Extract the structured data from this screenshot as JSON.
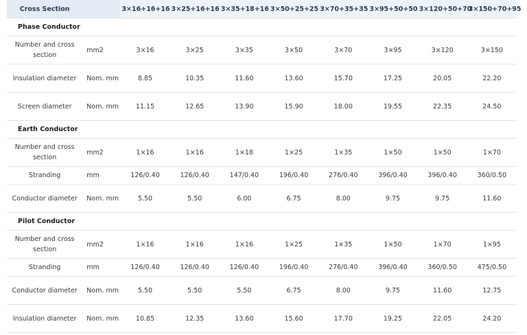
{
  "header": {
    "title": "Cross Section",
    "columns": [
      "3×16+16+16",
      "3×25+16+16",
      "3×35+18+16",
      "3×50+25+25",
      "3×70+35+35",
      "3×95+50+50",
      "3×120+50+70",
      "3×150+70+95"
    ]
  },
  "sections": [
    {
      "title": "Phase Conductor",
      "rows": [
        {
          "label": "Number and cross section",
          "unit": "mm2",
          "values": [
            "3×16",
            "3×25",
            "3×35",
            "3×50",
            "3×70",
            "3×95",
            "3×120",
            "3×150"
          ]
        },
        {
          "label": "Insulation diameter",
          "unit": "Nom. mm",
          "values": [
            "8.85",
            "10.35",
            "11.60",
            "13.60",
            "15.70",
            "17.25",
            "20.05",
            "22.20"
          ]
        },
        {
          "label": "Screen diameter",
          "unit": "Nom. mm",
          "values": [
            "11.15",
            "12.65",
            "13.90",
            "15.90",
            "18.00",
            "19.55",
            "22.35",
            "24.50"
          ]
        }
      ]
    },
    {
      "title": "Earth Conductor",
      "rows": [
        {
          "label": "Number and cross section",
          "unit": "mm2",
          "values": [
            "1×16",
            "1×16",
            "1×18",
            "1×25",
            "1×35",
            "1×50",
            "1×50",
            "1×70"
          ]
        },
        {
          "label": "Stranding",
          "unit": "mm",
          "values": [
            "126/0.40",
            "126/0.40",
            "147/0.40",
            "196/0.40",
            "276/0.40",
            "396/0.40",
            "396/0.40",
            "360/0.50"
          ]
        },
        {
          "label": "Conductor diameter",
          "unit": "Nom. mm",
          "values": [
            "5.50",
            "5.50",
            "6.00",
            "6.75",
            "8.00",
            "9.75",
            "9.75",
            "11.60"
          ]
        }
      ]
    },
    {
      "title": "Pilot Conductor",
      "rows": [
        {
          "label": "Number and cross section",
          "unit": "mm2",
          "values": [
            "1×16",
            "1×16",
            "1×16",
            "1×25",
            "1×35",
            "1×50",
            "1×70",
            "1×95"
          ]
        },
        {
          "label": "Stranding",
          "unit": "mm",
          "values": [
            "126/0.40",
            "126/0.40",
            "126/0.40",
            "196/0.40",
            "276/0.40",
            "396/0.40",
            "360/0.50",
            "475/0.50"
          ]
        },
        {
          "label": "Conductor diameter",
          "unit": "Nom. mm",
          "values": [
            "5.50",
            "5.50",
            "5.50",
            "6.75",
            "8.00",
            "9.75",
            "11.60",
            "12.75"
          ]
        },
        {
          "label": "Insulation diameter",
          "unit": "Nom. mm",
          "values": [
            "10.85",
            "12.35",
            "13.60",
            "15.60",
            "17.70",
            "19.25",
            "22.05",
            "24.20"
          ]
        }
      ]
    }
  ]
}
